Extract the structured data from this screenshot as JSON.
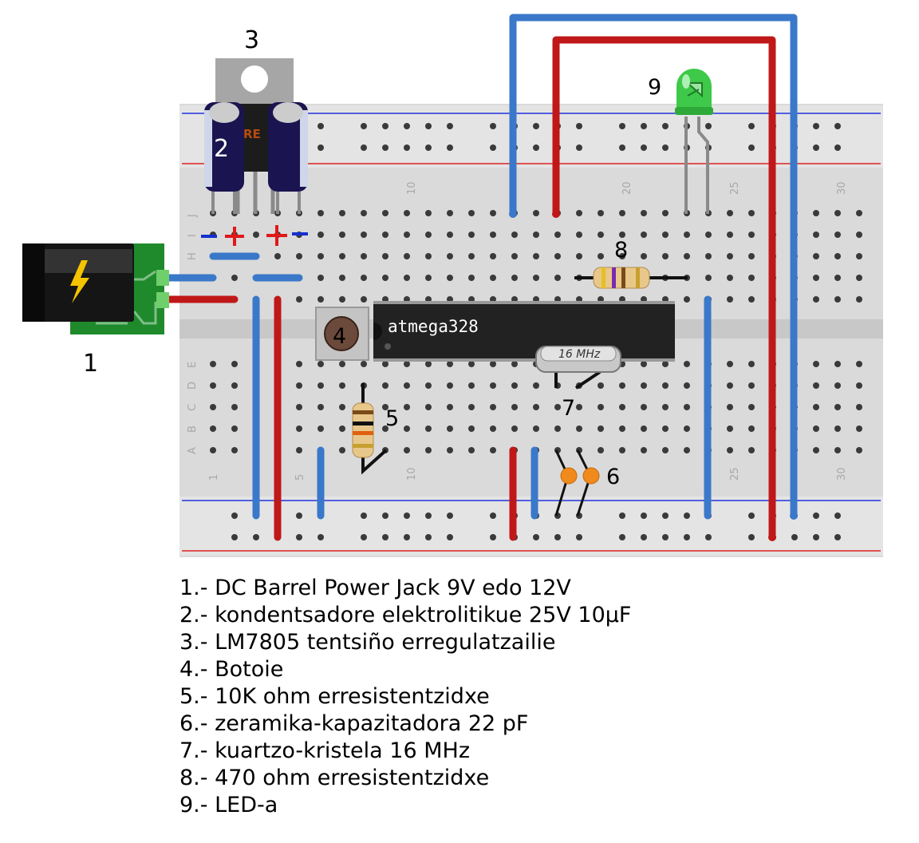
{
  "labels": {
    "jack": "1",
    "capacitors": "2",
    "regulator": "3",
    "button": "4",
    "resistor_10k": "5",
    "ceramic_caps": "6",
    "crystal": "7",
    "resistor_470": "8",
    "led": "9"
  },
  "chip": {
    "name": "atmega328"
  },
  "crystal": {
    "marking": "16 MHz"
  },
  "regulator": {
    "marking": "RE"
  },
  "breadboard": {
    "column_numbers_top": [
      "10",
      "20",
      "25",
      "30"
    ],
    "column_numbers_bottom": [
      "1",
      "5",
      "10",
      "25",
      "30"
    ],
    "row_letters_top": [
      "J",
      "I",
      "H"
    ],
    "row_letters_bottom": [
      "E",
      "D",
      "C",
      "B",
      "A"
    ]
  },
  "legend": [
    "1.- DC Barrel Power Jack 9V edo 12V",
    "2.- kondentsadore elektrolitikue 25V 10µF",
    "3.- LM7805 tentsiño erregulatzailie",
    "4.- Botoie",
    "5.- 10K ohm erresistentzidxe",
    "6.- zeramika-kapazitadora 22 pF",
    "7.- kuartzo-kristela 16 MHz",
    "8.- 470 ohm erresistentzidxe",
    "9.- LED-a"
  ],
  "colors": {
    "wire_blue": "#3a78c9",
    "wire_red": "#c01818",
    "breadboard": "#dadada",
    "led_green": "#3ec94a",
    "capacitor_body": "#1a1450",
    "chip_body": "#222222"
  }
}
